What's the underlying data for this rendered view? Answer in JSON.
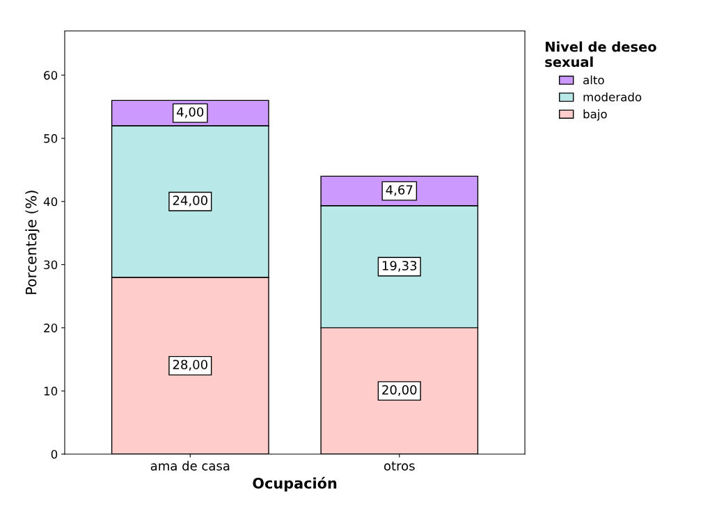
{
  "chart_data": {
    "type": "bar",
    "stacked": true,
    "xlabel": "Ocupación",
    "ylabel": "Porcentaje (%)",
    "legend_title": "Nivel de deseo\nsexual",
    "legend": "top right",
    "grid": false,
    "categories": [
      "ama de casa",
      "otros"
    ],
    "ylim": [
      0,
      67
    ],
    "yticks": [
      0,
      10,
      20,
      30,
      40,
      50,
      60
    ],
    "series": [
      {
        "name": "bajo",
        "color": "#ffcccc",
        "values": [
          28.0,
          20.0
        ],
        "value_labels": [
          "28,00",
          "20,00"
        ]
      },
      {
        "name": "moderado",
        "color": "#b8e8e8",
        "values": [
          24.0,
          19.33
        ],
        "value_labels": [
          "24,00",
          "19,33"
        ]
      },
      {
        "name": "alto",
        "color": "#cc99ff",
        "values": [
          4.0,
          4.67
        ],
        "value_labels": [
          "4,00",
          "4,67"
        ]
      }
    ]
  }
}
